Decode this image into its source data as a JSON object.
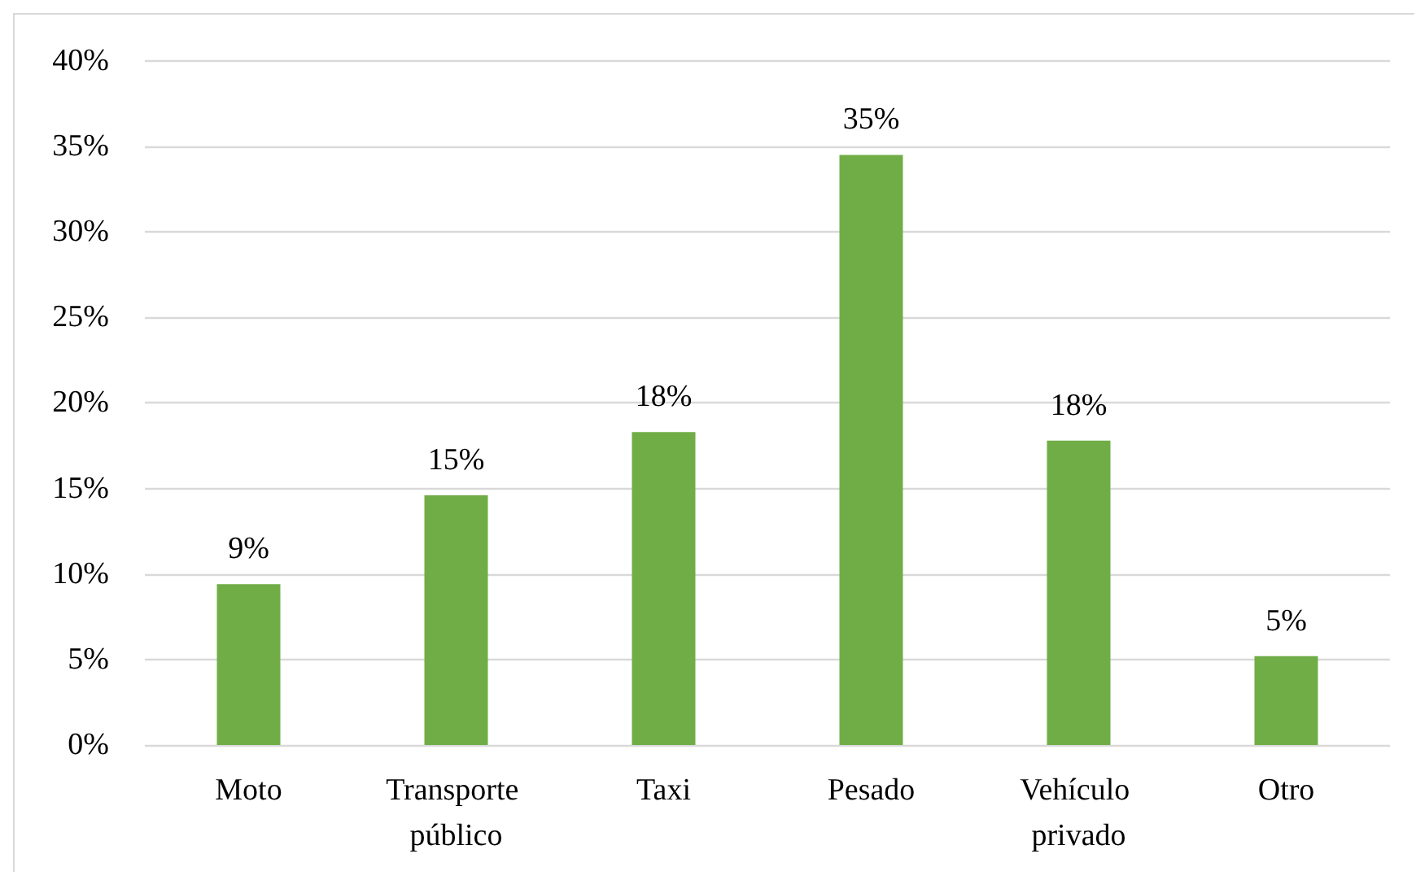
{
  "chart_data": {
    "type": "bar",
    "categories": [
      "Moto",
      "Transporte público",
      "Taxi",
      "Pesado",
      "Vehículo privado",
      "Otro"
    ],
    "values": [
      9.4,
      14.6,
      18.3,
      34.5,
      17.8,
      5.2
    ],
    "color": "#70ad47",
    "value_labels": [
      "9%",
      "15%",
      "18%",
      "35%",
      "18%",
      "5%"
    ],
    "ylim": [
      0,
      40
    ],
    "yticks": [
      {
        "value": 0,
        "label": "0%"
      },
      {
        "value": 5,
        "label": "5%"
      },
      {
        "value": 10,
        "label": "10%"
      },
      {
        "value": 15,
        "label": "15%"
      },
      {
        "value": 20,
        "label": "20%"
      },
      {
        "value": 25,
        "label": "25%"
      },
      {
        "value": 30,
        "label": "30%"
      },
      {
        "value": 35,
        "label": "35%"
      },
      {
        "value": 40,
        "label": "40%"
      }
    ],
    "grid": "y"
  }
}
